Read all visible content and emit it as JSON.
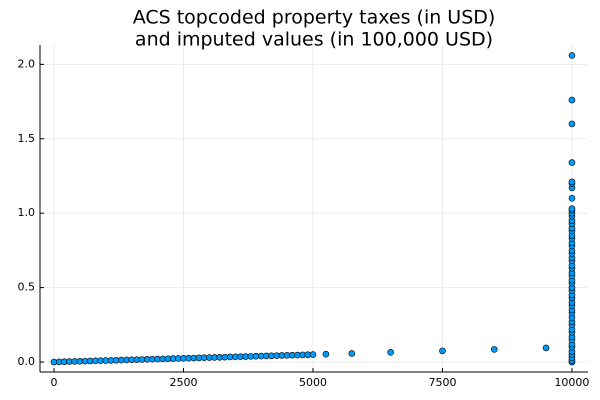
{
  "chart_data": {
    "type": "scatter",
    "title": [
      "ACS topcoded property taxes (in USD)",
      "and imputed values (in 100,000 USD)"
    ],
    "color": "#009af9",
    "x": [
      0,
      100,
      200,
      300,
      400,
      500,
      600,
      700,
      800,
      900,
      1000,
      1100,
      1200,
      1300,
      1400,
      1500,
      1600,
      1700,
      1800,
      1900,
      2000,
      2100,
      2200,
      2300,
      2400,
      2500,
      2600,
      2700,
      2800,
      2900,
      3000,
      3100,
      3200,
      3300,
      3400,
      3500,
      3600,
      3700,
      3800,
      3900,
      4000,
      4100,
      4200,
      4300,
      4400,
      4500,
      4600,
      4700,
      4800,
      4900,
      5000,
      5250,
      5750,
      6500,
      7500,
      8500,
      9500,
      10000,
      10000,
      10000,
      10000,
      10000,
      10000,
      10000,
      10000,
      10000,
      10000,
      10000,
      10000,
      10000,
      10000,
      10000,
      10000,
      10000,
      10000,
      10000,
      10000,
      10000,
      10000,
      10000,
      10000,
      10000,
      10000,
      10000,
      10000,
      10000,
      10000,
      10000,
      10000,
      10000,
      10000,
      10000,
      10000,
      10000,
      10000,
      10000,
      10000,
      10000,
      10000,
      10000,
      10000,
      10000,
      10000,
      10000,
      10000,
      10000,
      10000,
      10000,
      10000
    ],
    "values": [
      0,
      0.001,
      0.002,
      0.003,
      0.004,
      0.005,
      0.006,
      0.007,
      0.008,
      0.009,
      0.01,
      0.011,
      0.012,
      0.013,
      0.014,
      0.015,
      0.016,
      0.017,
      0.018,
      0.019,
      0.02,
      0.021,
      0.022,
      0.023,
      0.024,
      0.025,
      0.026,
      0.027,
      0.028,
      0.029,
      0.03,
      0.031,
      0.032,
      0.033,
      0.034,
      0.035,
      0.036,
      0.037,
      0.038,
      0.039,
      0.04,
      0.041,
      0.042,
      0.043,
      0.044,
      0.045,
      0.046,
      0.047,
      0.048,
      0.049,
      0.05,
      0.0525,
      0.0575,
      0.065,
      0.075,
      0.085,
      0.095,
      0,
      0.01,
      0.03,
      0.05,
      0.07,
      0.1,
      0.12,
      0.15,
      0.17,
      0.2,
      0.22,
      0.25,
      0.27,
      0.3,
      0.33,
      0.35,
      0.38,
      0.4,
      0.43,
      0.45,
      0.48,
      0.5,
      0.53,
      0.55,
      0.58,
      0.6,
      0.63,
      0.65,
      0.68,
      0.7,
      0.73,
      0.75,
      0.78,
      0.8,
      0.83,
      0.85,
      0.88,
      0.9,
      0.93,
      0.95,
      0.98,
      1.0,
      1.02,
      1.03,
      1.1,
      1.17,
      1.2,
      1.21,
      1.34,
      1.6,
      1.76,
      2.06
    ],
    "xlim": [
      -270,
      10310
    ],
    "xticks": [
      0,
      2500,
      5000,
      7500,
      10000
    ],
    "ylim": [
      -0.067,
      2.13
    ],
    "yticks": [
      {
        "value": 0,
        "label": "0.0"
      },
      0.5,
      {
        "value": 1,
        "label": "1.0"
      },
      1.5,
      {
        "value": 2,
        "label": "2.0"
      }
    ],
    "grid": true
  }
}
